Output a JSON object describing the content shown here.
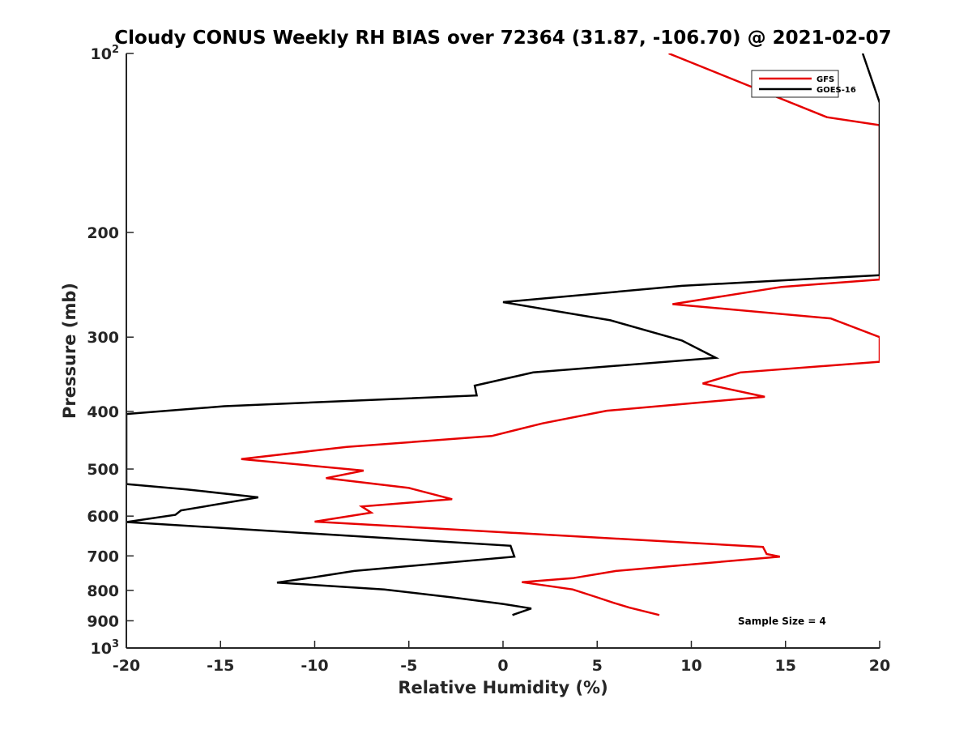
{
  "chart_data": {
    "type": "line",
    "title": "Cloudy CONUS Weekly RH BIAS over 72364 (31.87, -106.70) @ 2021-02-07",
    "xlabel": "Relative Humidity (%)",
    "ylabel": "Pressure (mb)",
    "xlim": [
      -20,
      20
    ],
    "ylim": [
      100,
      1000
    ],
    "y_scale": "log",
    "y_reversed": true,
    "grid": false,
    "legend_position": "top-right",
    "x_ticks": [
      "-20",
      "-15",
      "-10",
      "-5",
      "0",
      "5",
      "10",
      "15",
      "20"
    ],
    "y_ticks": [
      {
        "value": 100,
        "base": "10",
        "exp": "2"
      },
      {
        "value": 200,
        "label": "200"
      },
      {
        "value": 300,
        "label": "300"
      },
      {
        "value": 400,
        "label": "400"
      },
      {
        "value": 500,
        "label": "500"
      },
      {
        "value": 600,
        "label": "600"
      },
      {
        "value": 700,
        "label": "700"
      },
      {
        "value": 800,
        "label": "800"
      },
      {
        "value": 900,
        "label": "900"
      },
      {
        "value": 1000,
        "base": "10",
        "exp": "3"
      }
    ],
    "series": [
      {
        "name": "GFS",
        "color": "#e60000",
        "points": [
          [
            8.3,
            880
          ],
          [
            6.7,
            855
          ],
          [
            5.9,
            840
          ],
          [
            5.0,
            822
          ],
          [
            3.7,
            797
          ],
          [
            1.0,
            775
          ],
          [
            3.7,
            763
          ],
          [
            6.0,
            742
          ],
          [
            14.7,
            702
          ],
          [
            14.0,
            695
          ],
          [
            13.8,
            676
          ],
          [
            -10.0,
            613
          ],
          [
            -7.0,
            592
          ],
          [
            -7.5,
            578
          ],
          [
            -2.7,
            562
          ],
          [
            -5.0,
            538
          ],
          [
            -9.4,
            518
          ],
          [
            -7.4,
            503
          ],
          [
            -13.9,
            481
          ],
          [
            -8.3,
            459
          ],
          [
            -0.6,
            440
          ],
          [
            2.1,
            419
          ],
          [
            5.5,
            399
          ],
          [
            13.9,
            378
          ],
          [
            10.6,
            359
          ],
          [
            12.6,
            344
          ],
          [
            20.0,
            330
          ],
          [
            20.0,
            300
          ],
          [
            17.4,
            279
          ],
          [
            9.0,
            264
          ],
          [
            14.8,
            247
          ],
          [
            20.0,
            240
          ],
          [
            20.0,
            132
          ],
          [
            17.2,
            128
          ],
          [
            8.8,
            100
          ]
        ]
      },
      {
        "name": "GOES-16",
        "color": "#000000",
        "points": [
          [
            0.5,
            880
          ],
          [
            1.5,
            858
          ],
          [
            0.0,
            843
          ],
          [
            -2.7,
            822
          ],
          [
            -6.3,
            797
          ],
          [
            -12.0,
            776
          ],
          [
            -10.0,
            760
          ],
          [
            -7.9,
            742
          ],
          [
            0.6,
            702
          ],
          [
            0.4,
            673
          ],
          [
            -20.0,
            614
          ],
          [
            -17.4,
            597
          ],
          [
            -17.1,
            587
          ],
          [
            -13.0,
            558
          ],
          [
            -16.8,
            541
          ],
          [
            -20.0,
            530
          ],
          [
            -20.0,
            404
          ],
          [
            -14.8,
            392
          ],
          [
            -1.4,
            376
          ],
          [
            -1.5,
            362
          ],
          [
            1.6,
            344
          ],
          [
            11.3,
            325
          ],
          [
            9.5,
            304
          ],
          [
            5.7,
            281
          ],
          [
            0.0,
            262
          ],
          [
            9.5,
            246
          ],
          [
            20.0,
            236
          ],
          [
            20.0,
            121
          ],
          [
            19.1,
            100
          ]
        ]
      }
    ],
    "annotation": "Sample Size = 4"
  }
}
